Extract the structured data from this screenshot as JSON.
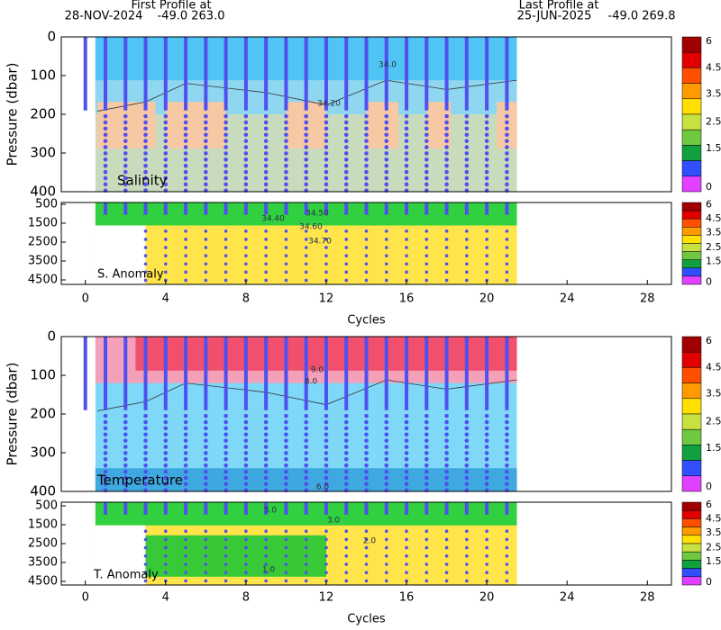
{
  "header": {
    "first_label": "First Profile at",
    "first_date": "28-NOV-2024",
    "first_pos": "-49.0 263.0",
    "last_label": "Last Profile at",
    "last_date": "25-JUN-2025",
    "last_pos": "-49.0 269.8"
  },
  "profile_cycles": [
    0,
    1,
    2,
    3,
    4,
    5,
    6,
    7,
    8,
    9,
    10,
    11,
    12,
    13,
    14,
    15,
    16,
    17,
    18,
    19,
    20,
    21
  ],
  "panels": [
    {
      "upper_label": "Salinity",
      "lower_label": "S. Anomaly",
      "ylabel": "Pressure (dbar)",
      "xlabel": "Cycles",
      "upper_ylim": [
        0,
        400
      ],
      "upper_yticks": [
        0,
        100,
        200,
        300,
        400
      ],
      "lower_ylim": [
        405,
        4738
      ],
      "lower_yticks": [
        500,
        1500,
        2500,
        3500,
        4500
      ],
      "xlim": [
        -1.2,
        29.2
      ],
      "xticks": [
        0,
        4,
        8,
        12,
        16,
        20,
        24,
        28
      ],
      "colorbar_ticks": [
        6,
        4.5,
        3.5,
        2.5,
        1.5,
        0
      ],
      "contour_labels": [
        "34.0",
        "34.20",
        "34.40",
        "34.50",
        "34.60",
        "34.70"
      ]
    },
    {
      "upper_label": "Temperature",
      "lower_label": "T. Anomaly",
      "ylabel": "Pressure (dbar)",
      "xlabel": "Cycles",
      "upper_ylim": [
        0,
        400
      ],
      "upper_yticks": [
        0,
        100,
        200,
        300,
        400
      ],
      "lower_ylim": [
        310,
        4690
      ],
      "lower_yticks": [
        500,
        1500,
        2500,
        3500,
        4500
      ],
      "xlim": [
        -1.2,
        29.2
      ],
      "xticks": [
        0,
        4,
        8,
        12,
        16,
        20,
        24,
        28
      ],
      "colorbar_ticks": [
        6,
        4.5,
        3.5,
        2.5,
        1.5,
        0
      ],
      "contour_labels": [
        "9.0",
        "8.0",
        "6.0",
        "5.0",
        "3.0",
        "2.0",
        "1.0"
      ]
    }
  ]
}
